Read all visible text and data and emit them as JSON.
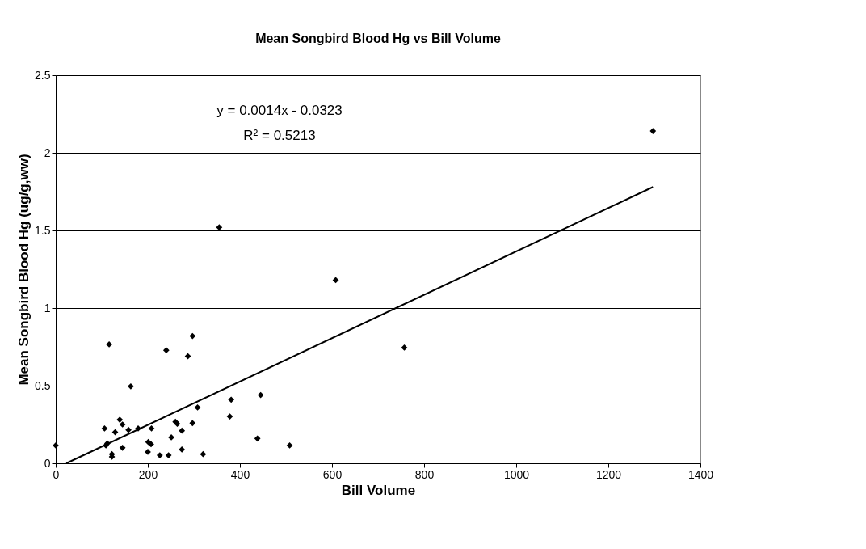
{
  "chart_data": {
    "type": "scatter",
    "title": "Mean Songbird Blood Hg vs Bill Volume",
    "xlabel": "Bill Volume",
    "ylabel": "Mean Songbird Blood Hg (ug/g,ww)",
    "annotations": [
      "y = 0.0014x - 0.0323",
      "R² = 0.5213"
    ],
    "series": [
      {
        "color": "#000000",
        "marker": "diamond",
        "x": [
          0,
          116,
          240,
          297,
          287,
          163,
          106,
          139,
          145,
          129,
          158,
          179,
          112,
          109,
          122,
          122,
          145,
          208,
          201,
          207,
          200,
          226,
          245,
          251,
          260,
          264,
          274,
          274,
          297,
          308,
          320,
          381,
          378,
          445,
          438,
          508,
          355,
          608,
          757,
          1297
        ],
        "values": [
          0.115,
          0.766,
          0.728,
          0.82,
          0.69,
          0.496,
          0.224,
          0.281,
          0.25,
          0.2,
          0.215,
          0.224,
          0.128,
          0.115,
          0.059,
          0.042,
          0.1,
          0.224,
          0.137,
          0.123,
          0.073,
          0.052,
          0.052,
          0.167,
          0.267,
          0.254,
          0.21,
          0.089,
          0.259,
          0.36,
          0.059,
          0.41,
          0.302,
          0.44,
          0.16,
          0.115,
          1.52,
          1.18,
          0.745,
          2.14
        ]
      },
      {
        "type": "line",
        "color": "#000000",
        "line_style": "solid",
        "x": [
          23,
          1297
        ],
        "values": [
          0.0,
          1.78
        ]
      }
    ],
    "xlim": [
      0,
      1400
    ],
    "xticks": [
      0,
      200,
      400,
      600,
      800,
      1000,
      1200,
      1400
    ],
    "ylim": [
      0,
      2.5
    ],
    "yticks": [
      0,
      0.5,
      1,
      1.5,
      2,
      2.5
    ],
    "grid": "y"
  }
}
